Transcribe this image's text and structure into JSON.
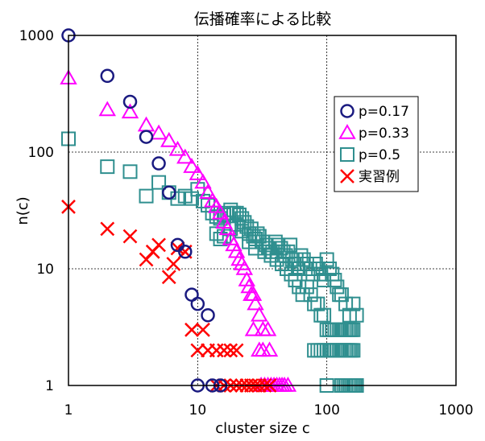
{
  "chart_data": {
    "type": "scatter",
    "title": "伝播確率による比較",
    "xlabel": "cluster size c",
    "ylabel": "n(c)",
    "xscale": "log",
    "yscale": "log",
    "xlim": [
      1,
      1000
    ],
    "ylim": [
      1,
      1000
    ],
    "x_ticks": [
      "1",
      "10",
      "100",
      "1000"
    ],
    "y_ticks": [
      "1",
      "10",
      "100",
      "1000"
    ],
    "grid": "major, dotted",
    "legend_position": "top-right",
    "series": [
      {
        "name": "p=0.17",
        "marker": "circle",
        "color": "#1a1a80",
        "points": [
          [
            1,
            1000
          ],
          [
            2,
            450
          ],
          [
            3,
            270
          ],
          [
            4,
            135
          ],
          [
            5,
            80
          ],
          [
            6,
            45
          ],
          [
            7,
            16
          ],
          [
            8,
            14
          ],
          [
            9,
            6
          ],
          [
            10,
            5
          ],
          [
            12,
            4
          ],
          [
            10,
            1
          ],
          [
            13,
            1
          ],
          [
            15,
            1
          ]
        ]
      },
      {
        "name": "p=0.33",
        "marker": "triangle",
        "color": "#ff00ff",
        "points": [
          [
            1,
            430
          ],
          [
            2,
            230
          ],
          [
            3,
            220
          ],
          [
            4,
            170
          ],
          [
            5,
            145
          ],
          [
            6,
            125
          ],
          [
            7,
            105
          ],
          [
            8,
            90
          ],
          [
            9,
            75
          ],
          [
            10,
            65
          ],
          [
            11,
            55
          ],
          [
            12,
            45
          ],
          [
            13,
            38
          ],
          [
            14,
            34
          ],
          [
            15,
            30
          ],
          [
            16,
            25
          ],
          [
            17,
            22
          ],
          [
            18,
            18
          ],
          [
            19,
            16
          ],
          [
            20,
            14
          ],
          [
            21,
            12
          ],
          [
            22,
            11
          ],
          [
            23,
            10
          ],
          [
            24,
            8
          ],
          [
            25,
            7
          ],
          [
            26,
            6
          ],
          [
            27,
            6
          ],
          [
            28,
            5
          ],
          [
            30,
            4
          ],
          [
            32,
            3
          ],
          [
            35,
            3
          ],
          [
            27,
            3
          ],
          [
            30,
            2
          ],
          [
            32,
            2
          ],
          [
            36,
            2
          ],
          [
            31,
            1
          ],
          [
            33,
            1
          ],
          [
            35,
            1
          ],
          [
            37,
            1
          ],
          [
            39,
            1
          ],
          [
            41,
            1
          ],
          [
            43,
            1
          ],
          [
            45,
            1
          ],
          [
            47,
            1
          ],
          [
            50,
            1
          ]
        ]
      },
      {
        "name": "p=0.5",
        "marker": "square",
        "color": "#2f8f8f",
        "points": [
          [
            1,
            130
          ],
          [
            2,
            75
          ],
          [
            3,
            68
          ],
          [
            4,
            42
          ],
          [
            5,
            55
          ],
          [
            6,
            45
          ],
          [
            7,
            40
          ],
          [
            8,
            42
          ],
          [
            9,
            40
          ],
          [
            10,
            48
          ],
          [
            11,
            38
          ],
          [
            12,
            35
          ],
          [
            13,
            30
          ],
          [
            14,
            28
          ],
          [
            15,
            27
          ],
          [
            16,
            29
          ],
          [
            17,
            30
          ],
          [
            18,
            32
          ],
          [
            19,
            30
          ],
          [
            20,
            30
          ],
          [
            21,
            29
          ],
          [
            22,
            27
          ],
          [
            23,
            25
          ],
          [
            24,
            23
          ],
          [
            25,
            20
          ],
          [
            26,
            22
          ],
          [
            27,
            19
          ],
          [
            28,
            18
          ],
          [
            29,
            20
          ],
          [
            30,
            19
          ],
          [
            32,
            17
          ],
          [
            34,
            16
          ],
          [
            36,
            15
          ],
          [
            38,
            14
          ],
          [
            40,
            17
          ],
          [
            42,
            16
          ],
          [
            44,
            15
          ],
          [
            46,
            14
          ],
          [
            48,
            13
          ],
          [
            50,
            14
          ],
          [
            52,
            16
          ],
          [
            54,
            12
          ],
          [
            56,
            11
          ],
          [
            58,
            12
          ],
          [
            60,
            10
          ],
          [
            63,
            13
          ],
          [
            66,
            12
          ],
          [
            70,
            11
          ],
          [
            74,
            10
          ],
          [
            78,
            9
          ],
          [
            82,
            11
          ],
          [
            86,
            10
          ],
          [
            90,
            9
          ],
          [
            95,
            8
          ],
          [
            100,
            12
          ],
          [
            105,
            10
          ],
          [
            110,
            9
          ],
          [
            115,
            8
          ],
          [
            120,
            7
          ],
          [
            125,
            6
          ],
          [
            130,
            6
          ],
          [
            140,
            5
          ],
          [
            150,
            4
          ],
          [
            160,
            5
          ],
          [
            170,
            4
          ],
          [
            14,
            20
          ],
          [
            15,
            18
          ],
          [
            16,
            19
          ],
          [
            18,
            22
          ],
          [
            20,
            24
          ],
          [
            22,
            21
          ],
          [
            25,
            17
          ],
          [
            28,
            15
          ],
          [
            33,
            14
          ],
          [
            37,
            13
          ],
          [
            41,
            12
          ],
          [
            45,
            11
          ],
          [
            49,
            10
          ],
          [
            53,
            9
          ],
          [
            57,
            8
          ],
          [
            61,
            7
          ],
          [
            65,
            6
          ],
          [
            70,
            7
          ],
          [
            75,
            6
          ],
          [
            80,
            5
          ],
          [
            85,
            5
          ],
          [
            90,
            4
          ],
          [
            95,
            4
          ],
          [
            100,
            3
          ],
          [
            105,
            3
          ],
          [
            110,
            3
          ],
          [
            115,
            3
          ],
          [
            120,
            3
          ],
          [
            125,
            3
          ],
          [
            130,
            3
          ],
          [
            135,
            3
          ],
          [
            140,
            3
          ],
          [
            145,
            3
          ],
          [
            150,
            3
          ],
          [
            155,
            3
          ],
          [
            160,
            3
          ],
          [
            80,
            2
          ],
          [
            85,
            2
          ],
          [
            90,
            2
          ],
          [
            95,
            2
          ],
          [
            100,
            2
          ],
          [
            105,
            2
          ],
          [
            110,
            2
          ],
          [
            115,
            2
          ],
          [
            120,
            2
          ],
          [
            125,
            2
          ],
          [
            130,
            2
          ],
          [
            135,
            2
          ],
          [
            140,
            2
          ],
          [
            145,
            2
          ],
          [
            150,
            2
          ],
          [
            155,
            2
          ],
          [
            160,
            2
          ],
          [
            100,
            1
          ],
          [
            130,
            1
          ],
          [
            135,
            1
          ],
          [
            140,
            1
          ],
          [
            145,
            1
          ],
          [
            150,
            1
          ],
          [
            155,
            1
          ],
          [
            160,
            1
          ],
          [
            165,
            1
          ],
          [
            170,
            1
          ]
        ]
      },
      {
        "name": "実習例",
        "marker": "x",
        "color": "#ff0000",
        "points": [
          [
            1,
            34
          ],
          [
            2,
            22
          ],
          [
            3,
            19
          ],
          [
            4,
            12
          ],
          [
            5,
            16
          ],
          [
            4.5,
            14
          ],
          [
            6,
            8.5
          ],
          [
            6.5,
            11
          ],
          [
            7,
            15
          ],
          [
            8,
            14
          ],
          [
            9,
            3
          ],
          [
            11,
            3
          ],
          [
            10,
            2
          ],
          [
            12,
            2
          ],
          [
            14,
            2
          ],
          [
            16,
            2
          ],
          [
            18,
            2
          ],
          [
            20,
            2
          ],
          [
            14,
            1
          ],
          [
            16,
            1
          ],
          [
            18,
            1
          ],
          [
            20,
            1
          ],
          [
            22,
            1
          ],
          [
            24,
            1
          ],
          [
            26,
            1
          ],
          [
            28,
            1
          ],
          [
            30,
            1
          ],
          [
            33,
            1
          ],
          [
            36,
            1
          ]
        ]
      }
    ]
  }
}
